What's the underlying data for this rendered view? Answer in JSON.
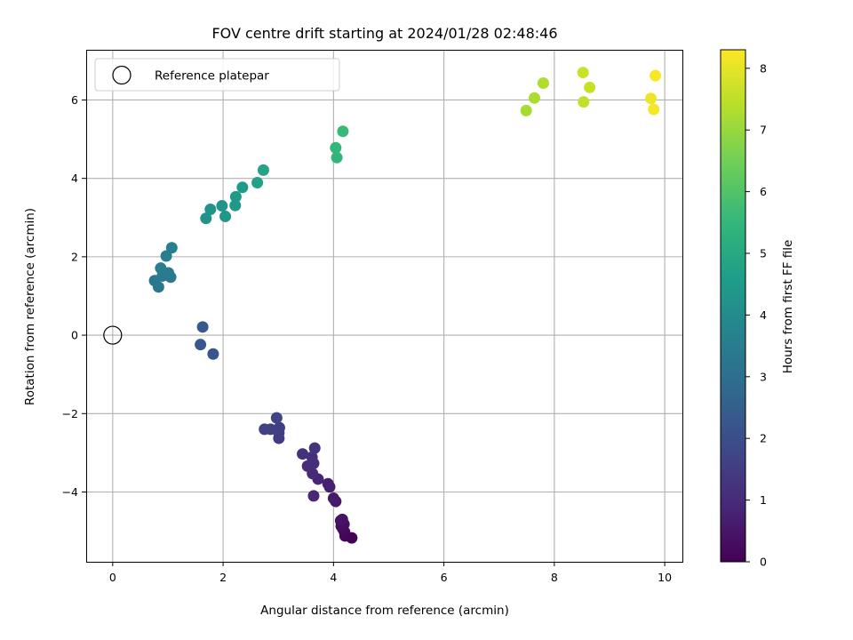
{
  "chart_data": {
    "type": "scatter",
    "title": "FOV centre drift starting at 2024/01/28 02:48:46",
    "xlabel": "Angular distance from reference (arcmin)",
    "ylabel": "Rotation from reference (arcmin)",
    "xlim": [
      -0.48,
      10.32
    ],
    "ylim": [
      -5.78,
      7.28
    ],
    "xticks": [
      0,
      2,
      4,
      6,
      8,
      10
    ],
    "yticks": [
      -4,
      -2,
      0,
      2,
      4,
      6
    ],
    "grid": true,
    "colormap": "viridis",
    "colorbar": {
      "label": "Hours from first FF file",
      "min": 0,
      "max": 8.3,
      "ticks": [
        0,
        1,
        2,
        3,
        4,
        5,
        6,
        7,
        8
      ]
    },
    "legend": {
      "position": "top-left",
      "entries": [
        {
          "label": "Reference platepar",
          "marker": "open-circle"
        }
      ]
    },
    "reference_point": {
      "x": 0,
      "y": 0
    },
    "points": [
      {
        "x": 4.33,
        "y": -5.17,
        "t": 0.05
      },
      {
        "x": 4.21,
        "y": -5.12,
        "t": 0.1
      },
      {
        "x": 4.2,
        "y": -5.02,
        "t": 0.15
      },
      {
        "x": 4.17,
        "y": -4.94,
        "t": 0.2
      },
      {
        "x": 4.14,
        "y": -4.87,
        "t": 0.25
      },
      {
        "x": 4.19,
        "y": -4.82,
        "t": 0.3
      },
      {
        "x": 4.13,
        "y": -4.73,
        "t": 0.35
      },
      {
        "x": 4.16,
        "y": -4.7,
        "t": 0.4
      },
      {
        "x": 4.04,
        "y": -4.24,
        "t": 0.55
      },
      {
        "x": 4.0,
        "y": -4.16,
        "t": 0.6
      },
      {
        "x": 3.93,
        "y": -3.87,
        "t": 0.7
      },
      {
        "x": 3.9,
        "y": -3.79,
        "t": 0.75
      },
      {
        "x": 3.72,
        "y": -3.67,
        "t": 0.85
      },
      {
        "x": 3.64,
        "y": -4.1,
        "t": 0.9
      },
      {
        "x": 3.62,
        "y": -3.53,
        "t": 1.0
      },
      {
        "x": 3.53,
        "y": -3.34,
        "t": 1.05
      },
      {
        "x": 3.64,
        "y": -3.27,
        "t": 1.1
      },
      {
        "x": 3.61,
        "y": -3.11,
        "t": 1.15
      },
      {
        "x": 3.44,
        "y": -3.03,
        "t": 1.2
      },
      {
        "x": 3.66,
        "y": -2.88,
        "t": 1.25
      },
      {
        "x": 3.01,
        "y": -2.63,
        "t": 1.45
      },
      {
        "x": 3.01,
        "y": -2.49,
        "t": 1.5
      },
      {
        "x": 3.02,
        "y": -2.36,
        "t": 1.55
      },
      {
        "x": 2.86,
        "y": -2.4,
        "t": 1.6
      },
      {
        "x": 2.75,
        "y": -2.4,
        "t": 1.65
      },
      {
        "x": 2.97,
        "y": -2.11,
        "t": 1.7
      },
      {
        "x": 1.82,
        "y": -0.48,
        "t": 2.2
      },
      {
        "x": 1.59,
        "y": -0.24,
        "t": 2.25
      },
      {
        "x": 1.63,
        "y": 0.21,
        "t": 2.35
      },
      {
        "x": 0.83,
        "y": 1.23,
        "t": 3.3
      },
      {
        "x": 0.76,
        "y": 1.39,
        "t": 3.35
      },
      {
        "x": 0.9,
        "y": 1.51,
        "t": 3.4
      },
      {
        "x": 1.05,
        "y": 1.48,
        "t": 3.42
      },
      {
        "x": 1.01,
        "y": 1.59,
        "t": 3.45
      },
      {
        "x": 0.87,
        "y": 1.71,
        "t": 3.5
      },
      {
        "x": 0.97,
        "y": 2.02,
        "t": 3.55
      },
      {
        "x": 1.07,
        "y": 2.23,
        "t": 3.6
      },
      {
        "x": 1.69,
        "y": 2.98,
        "t": 4.2
      },
      {
        "x": 1.77,
        "y": 3.21,
        "t": 4.25
      },
      {
        "x": 1.98,
        "y": 3.3,
        "t": 4.3
      },
      {
        "x": 2.04,
        "y": 3.03,
        "t": 4.35
      },
      {
        "x": 2.22,
        "y": 3.31,
        "t": 4.4
      },
      {
        "x": 2.23,
        "y": 3.53,
        "t": 4.45
      },
      {
        "x": 2.35,
        "y": 3.77,
        "t": 4.55
      },
      {
        "x": 2.62,
        "y": 3.89,
        "t": 4.75
      },
      {
        "x": 2.73,
        "y": 4.21,
        "t": 4.85
      },
      {
        "x": 4.06,
        "y": 4.53,
        "t": 5.45
      },
      {
        "x": 4.04,
        "y": 4.78,
        "t": 5.5
      },
      {
        "x": 4.17,
        "y": 5.2,
        "t": 5.6
      },
      {
        "x": 7.49,
        "y": 5.73,
        "t": 7.2
      },
      {
        "x": 7.64,
        "y": 6.05,
        "t": 7.25
      },
      {
        "x": 7.8,
        "y": 6.43,
        "t": 7.3
      },
      {
        "x": 8.53,
        "y": 5.95,
        "t": 7.55
      },
      {
        "x": 8.64,
        "y": 6.32,
        "t": 7.6
      },
      {
        "x": 8.52,
        "y": 6.7,
        "t": 7.65
      },
      {
        "x": 9.75,
        "y": 6.04,
        "t": 8.1
      },
      {
        "x": 9.8,
        "y": 5.76,
        "t": 8.2
      },
      {
        "x": 9.83,
        "y": 6.62,
        "t": 8.25
      }
    ]
  }
}
